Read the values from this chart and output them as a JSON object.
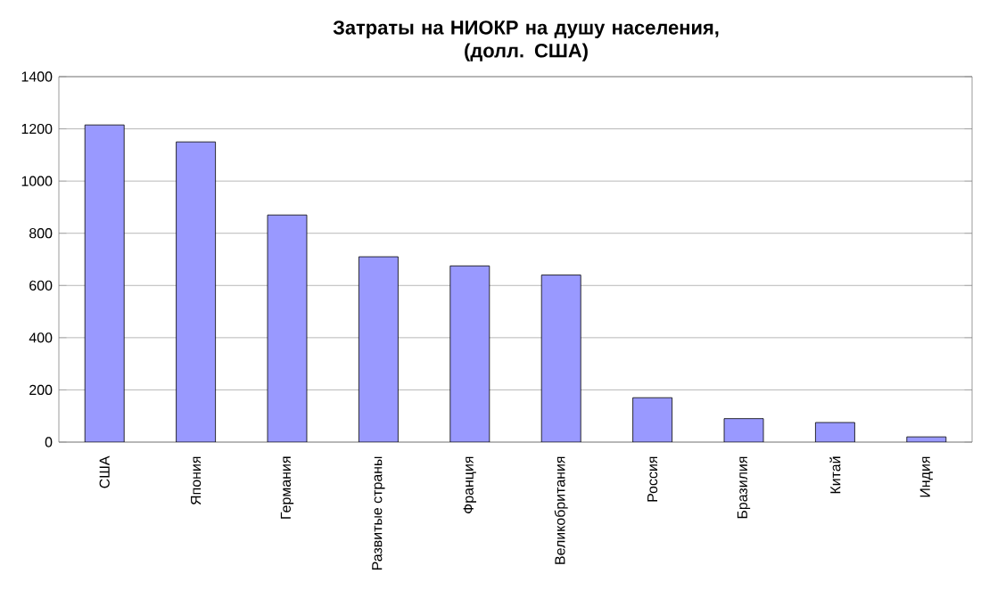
{
  "chart_data": {
    "type": "bar",
    "title": "Затраты на НИОКР на душу населения,\n(долл. США)",
    "categories": [
      "США",
      "Япония",
      "Германия",
      "Развитые страны",
      "Франция",
      "Великобритания",
      "Россия",
      "Бразилия",
      "Китай",
      "Индия"
    ],
    "values": [
      1215,
      1150,
      870,
      710,
      675,
      640,
      170,
      90,
      75,
      20
    ],
    "color": "#9999ff",
    "ylim": [
      0,
      1400
    ],
    "yticks": [
      0,
      200,
      400,
      600,
      800,
      1000,
      1200,
      1400
    ],
    "grid": "y"
  }
}
